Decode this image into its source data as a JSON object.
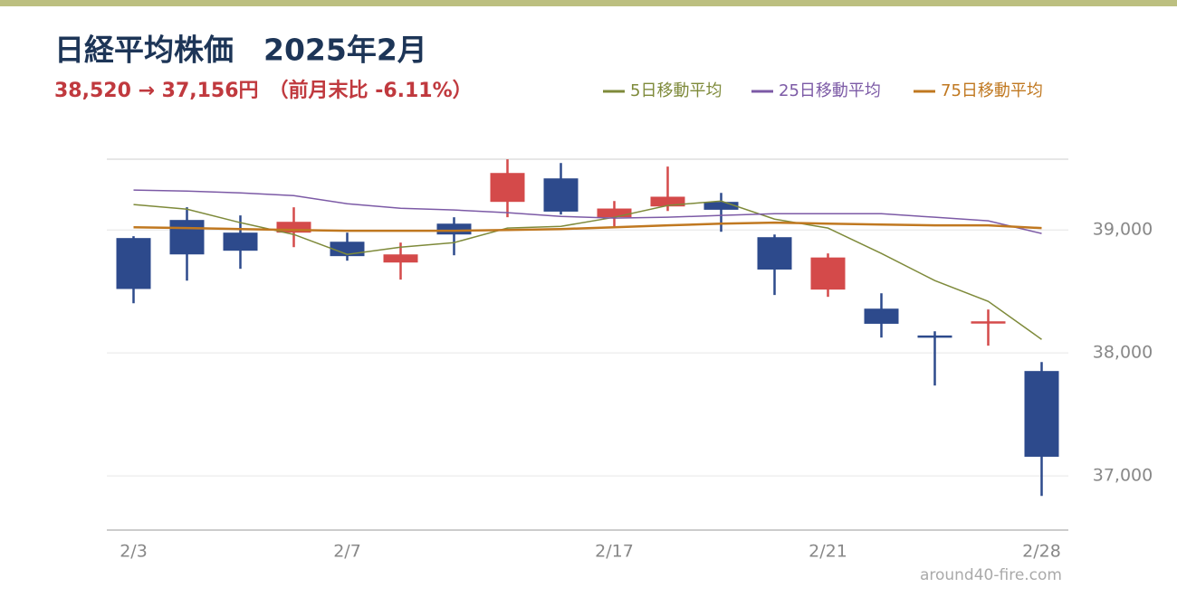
{
  "chart_data": {
    "type": "candlestick",
    "title": "日経平均株価　2025年2月",
    "subtitle": "38,520 → 37,156円　（前月末比 -6.11%）",
    "source": "around40-fire.com",
    "categories": [
      "2/3",
      null,
      null,
      null,
      "2/7",
      null,
      null,
      null,
      null,
      "2/17",
      null,
      null,
      null,
      "2/21",
      null,
      null,
      null,
      "2/28"
    ],
    "open": [
      38934,
      39081,
      38978,
      38978,
      38904,
      38735,
      39051,
      39228,
      39419,
      39103,
      39191,
      39228,
      38941,
      38515,
      38360,
      38142,
      38250,
      37853
    ],
    "high": [
      38949,
      39184,
      39118,
      39184,
      38978,
      38897,
      39103,
      39574,
      39544,
      39235,
      39515,
      39301,
      38963,
      38809,
      38485,
      38176,
      38353,
      37926
    ],
    "low": [
      38404,
      38588,
      38684,
      38860,
      38750,
      38596,
      38794,
      39103,
      39125,
      39029,
      39154,
      38985,
      38471,
      38456,
      38125,
      37735,
      38059,
      36838
    ],
    "close": [
      38520,
      38801,
      38831,
      39066,
      38787,
      38801,
      38963,
      39463,
      39149,
      39174,
      39270,
      39164,
      38678,
      38776,
      38237,
      38132,
      38257,
      37156
    ],
    "up_color": "#d44a4a",
    "down_color": "#2d4a8c",
    "series": [
      {
        "name": "5日移動平均",
        "color": "#7e8a3a",
        "width": 1.5,
        "values": [
          39206,
          39169,
          39059,
          38963,
          38801,
          38860,
          38897,
          39015,
          39029,
          39103,
          39199,
          39235,
          39088,
          39015,
          38809,
          38588,
          38419,
          38110
        ]
      },
      {
        "name": "25日移動平均",
        "color": "#7c5aa6",
        "width": 1.5,
        "values": [
          39324,
          39316,
          39301,
          39279,
          39213,
          39176,
          39162,
          39140,
          39110,
          39096,
          39103,
          39118,
          39132,
          39132,
          39132,
          39103,
          39074,
          38971
        ]
      },
      {
        "name": "75日移動平均",
        "color": "#c07820",
        "width": 2.5,
        "values": [
          39022,
          39015,
          39007,
          39000,
          38993,
          38993,
          38993,
          39000,
          39007,
          39022,
          39037,
          39051,
          39059,
          39051,
          39044,
          39037,
          39037,
          39015
        ]
      }
    ],
    "ylim": [
      36560,
      39575
    ],
    "yticks": [
      {
        "value": 37000,
        "label": "37,000"
      },
      {
        "value": 38000,
        "label": "38,000"
      },
      {
        "value": 39000,
        "label": "39,000"
      }
    ],
    "grid": true
  }
}
